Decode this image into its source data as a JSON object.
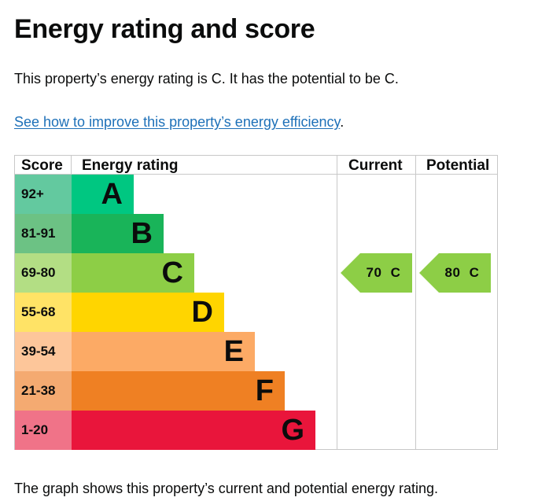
{
  "page": {
    "title": "Energy rating and score",
    "intro": "This property’s energy rating is C. It has the potential to be C.",
    "link_text": "See how to improve this property’s energy efficiency",
    "link_suffix": ".",
    "footer": "The graph shows this property’s current and potential energy rating."
  },
  "chart_data": {
    "type": "table",
    "headers": [
      "Score",
      "Energy rating",
      "Current",
      "Potential"
    ],
    "bands": [
      {
        "score": "92+",
        "letter": "A",
        "band_color": "#00c781",
        "score_color": "#63c99f",
        "bar_fraction": 0.23
      },
      {
        "score": "81-91",
        "letter": "B",
        "band_color": "#19b459",
        "score_color": "#6cc284",
        "bar_fraction": 0.34
      },
      {
        "score": "69-80",
        "letter": "C",
        "band_color": "#8dce46",
        "score_color": "#b3de84",
        "bar_fraction": 0.45
      },
      {
        "score": "55-68",
        "letter": "D",
        "band_color": "#ffd500",
        "score_color": "#ffe366",
        "bar_fraction": 0.56
      },
      {
        "score": "39-54",
        "letter": "E",
        "band_color": "#fcaa65",
        "score_color": "#fdc69a",
        "bar_fraction": 0.67
      },
      {
        "score": "21-38",
        "letter": "F",
        "band_color": "#ef8023",
        "score_color": "#f4aa71",
        "bar_fraction": 0.78
      },
      {
        "score": "1-20",
        "letter": "G",
        "band_color": "#e9153b",
        "score_color": "#f07388",
        "bar_fraction": 0.89
      }
    ],
    "current": {
      "value": 70,
      "letter": "C",
      "label": "70 C",
      "color": "#8dce46"
    },
    "potential": {
      "value": 80,
      "letter": "C",
      "label": "80 C",
      "color": "#8dce46"
    }
  }
}
